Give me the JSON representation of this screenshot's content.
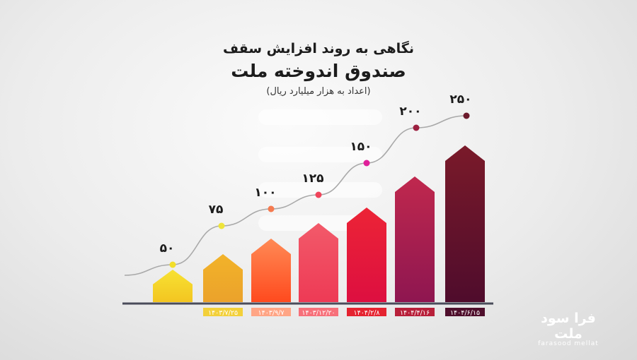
{
  "title_line1": "نگاهی به روند افزایش سقف",
  "title_line2": "صندوق اندوخته ملت",
  "subtitle": "(اعداد به هزار میلیارد ریال)",
  "logo": {
    "fa": "فرا سود ملت",
    "en": "farasood mellat"
  },
  "chart_data": {
    "type": "bar",
    "title": "نگاهی به روند افزایش سقف صندوق اندوخته ملت",
    "subtitle": "(اعداد به هزار میلیارد ریال)",
    "categories": [
      "",
      "۱۴۰۳/۷/۲۵",
      "۱۴۰۳/۹/۷",
      "۱۴۰۳/۱۲/۲۰",
      "۱۴۰۴/۲/۸",
      "۱۴۰۴/۴/۱۶",
      "۱۴۰۴/۶/۱۵"
    ],
    "values": [
      50,
      75,
      100,
      125,
      150,
      200,
      250
    ],
    "value_labels": [
      "۵۰",
      "۷۵",
      "۱۰۰",
      "۱۲۵",
      "۱۵۰",
      "۲۰۰",
      "۲۵۰"
    ],
    "overlay": "trend line with dots",
    "grid": false,
    "colors": {
      "bar_top": [
        "#f7e233",
        "#f2b32a",
        "#ff8a55",
        "#f25a6a",
        "#ec2436",
        "#c0284e",
        "#7a1a2a"
      ],
      "bar_bottom": [
        "#f3c521",
        "#eba22b",
        "#ff4a1e",
        "#ee3a55",
        "#dd0f40",
        "#8e1650",
        "#4f0c2c"
      ],
      "dot": [
        "#f2de2a",
        "#eee43a",
        "#f57a4f",
        "#f0455b",
        "#e0209a",
        "#9c2040",
        "#6c1a2c"
      ],
      "date_bg": [
        "",
        "#f3d03a",
        "#ffa585",
        "#f7707a",
        "#e52330",
        "#b8203a",
        "#4f0f2c"
      ],
      "axis": "#4a4c5a"
    }
  }
}
